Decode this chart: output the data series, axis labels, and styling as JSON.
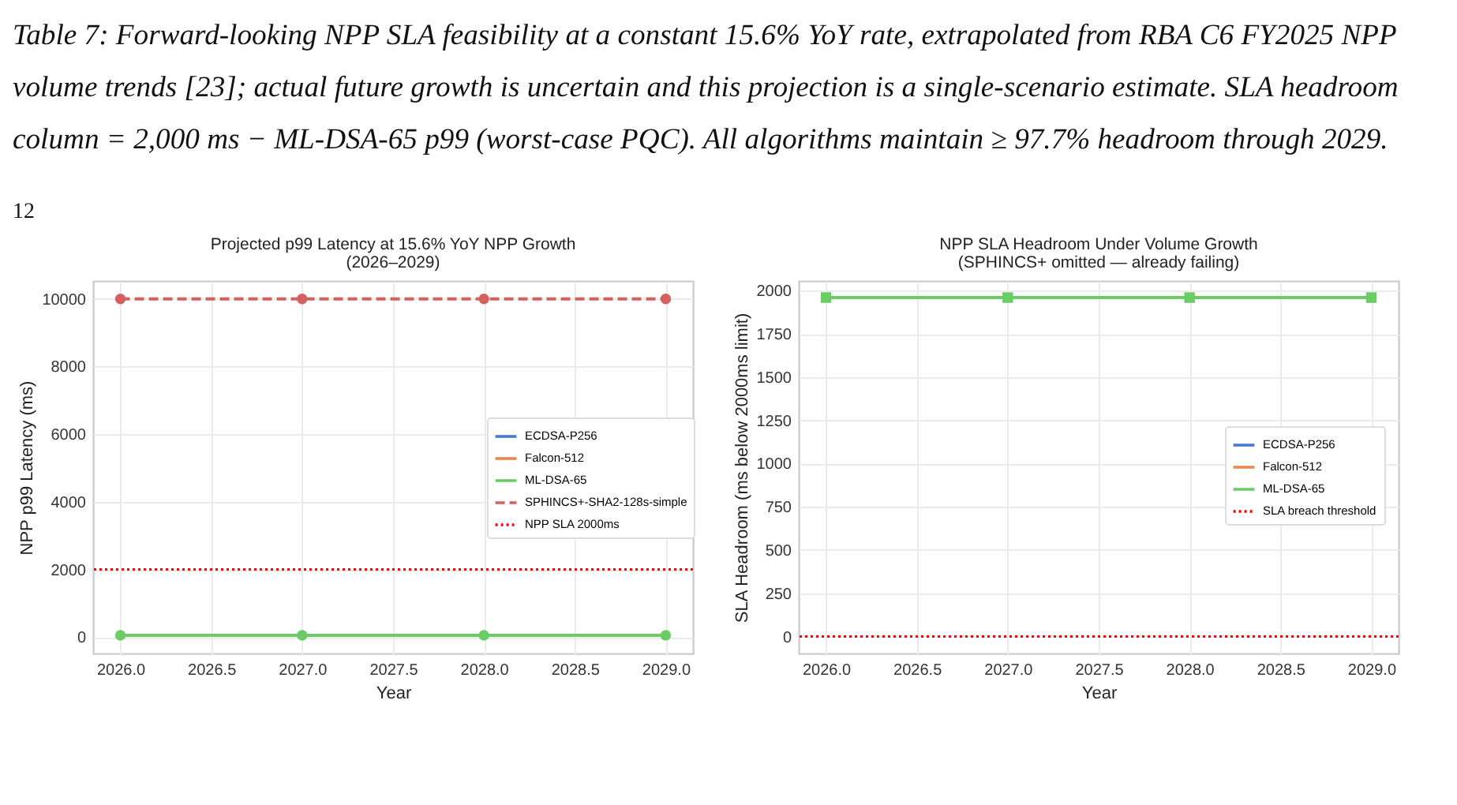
{
  "chart_data": [
    {
      "type": "line",
      "title": "Projected p99 Latency at 15.6% YoY NPP Growth",
      "subtitle": "(2026–2029)",
      "xlabel": "Year",
      "ylabel": "NPP p99 Latency (ms)",
      "annotations": [
        "Table 7: Forward-looking NPP SLA feasibility at a constant 15.6% YoY rate, extrapolated from RBA C6 FY2025 NPP volume trends [23]; actual future growth is uncertain and this projection is a single-scenario estimate. SLA headroom column = 2,000 ms − ML-DSA-65 p99 (worst-case PQC). All algorithms maintain ≥ 97.7% headroom through 2029.",
        "12"
      ],
      "x": [
        2026,
        2027,
        2028,
        2029
      ],
      "series": [
        {
          "name": "ECDSA-P256",
          "color": "#4878d0",
          "values": [
            null,
            null,
            null,
            null
          ]
        },
        {
          "name": "Falcon-512",
          "color": "#ee854a",
          "values": [
            null,
            null,
            null,
            null
          ]
        },
        {
          "name": "ML-DSA-65",
          "color": "#6acc64",
          "values": [
            50,
            50,
            50,
            50
          ]
        },
        {
          "name": "SPHINCS+-SHA2-128s-simple",
          "color": "#d65f5f",
          "values": [
            10000,
            10000,
            10000,
            10000
          ],
          "line_style": "dashed"
        }
      ],
      "ref_lines": [
        {
          "axis": "y",
          "value": 2000,
          "label": "NPP SLA 2000ms",
          "color": "#ff0000",
          "line_style": "dotted"
        }
      ],
      "xlim": [
        2025.85,
        2029.15
      ],
      "xticks": [
        {
          "value": 2026,
          "label": "2026.0"
        },
        2026.5,
        {
          "value": 2027,
          "label": "2027.0"
        },
        2027.5,
        {
          "value": 2028,
          "label": "2028.0"
        },
        2028.5,
        {
          "value": 2029,
          "label": "2029.0"
        }
      ],
      "ylim": [
        -485,
        10530
      ],
      "yticks": [
        0,
        2000,
        4000,
        6000,
        8000,
        10000
      ],
      "grid": true,
      "legend": "right",
      "marker": "circle",
      "line_style": "solid"
    },
    {
      "type": "line",
      "title": "NPP SLA Headroom Under Volume Growth",
      "subtitle": "(SPHINCS+ omitted — already failing)",
      "xlabel": "Year",
      "ylabel": "SLA Headroom (ms below 2000ms limit)",
      "x": [
        2026,
        2027,
        2028,
        2029
      ],
      "series": [
        {
          "name": "ECDSA-P256",
          "color": "#4878d0",
          "values": [
            null,
            null,
            null,
            null
          ]
        },
        {
          "name": "Falcon-512",
          "color": "#ee854a",
          "values": [
            null,
            null,
            null,
            null
          ]
        },
        {
          "name": "ML-DSA-65",
          "color": "#6acc64",
          "values": [
            1960,
            1960,
            1960,
            1960
          ]
        }
      ],
      "ref_lines": [
        {
          "axis": "y",
          "value": 0,
          "label": "SLA breach threshold",
          "color": "#ff0000",
          "line_style": "dotted"
        }
      ],
      "xlim": [
        2025.85,
        2029.15
      ],
      "xticks": [
        {
          "value": 2026,
          "label": "2026.0"
        },
        2026.5,
        {
          "value": 2027,
          "label": "2027.0"
        },
        2027.5,
        {
          "value": 2028,
          "label": "2028.0"
        },
        2028.5,
        {
          "value": 2029,
          "label": "2029.0"
        }
      ],
      "ylim": [
        -98,
        2056
      ],
      "yticks": [
        0,
        250,
        500,
        750,
        1000,
        1250,
        1500,
        1750,
        2000
      ],
      "grid": true,
      "legend": "right",
      "marker": "square",
      "line_style": "solid"
    }
  ]
}
